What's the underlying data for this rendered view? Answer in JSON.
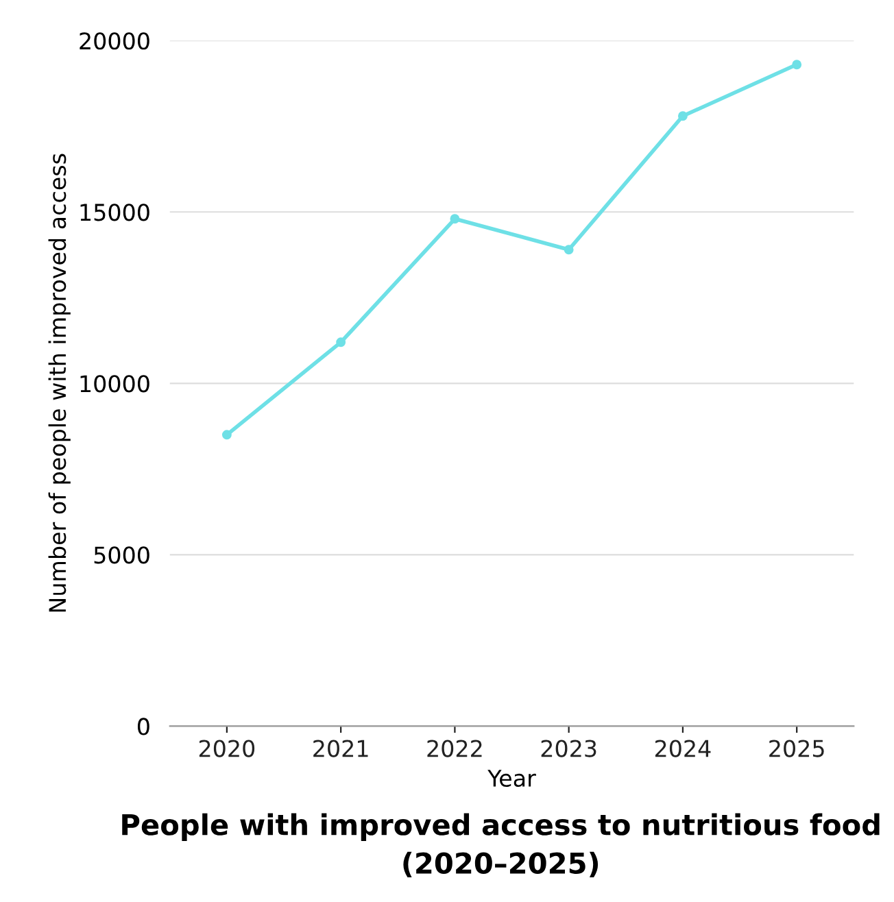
{
  "chart_data": {
    "type": "line",
    "title": "People with improved access to nutritious food\n(2020–2025)",
    "xlabel": "Year",
    "ylabel": "Number of people with improved access",
    "categories": [
      "2020",
      "2021",
      "2022",
      "2023",
      "2024",
      "2025"
    ],
    "series": [
      {
        "color": "#6ee0e6",
        "values": [
          8500,
          11200,
          14800,
          13900,
          17800,
          19300
        ]
      }
    ],
    "ylim": [
      0,
      20000
    ],
    "yticks": [
      0,
      5000,
      10000,
      15000,
      20000
    ],
    "grid": "y",
    "marker": "circle",
    "line_style": "solid",
    "legend": false
  }
}
